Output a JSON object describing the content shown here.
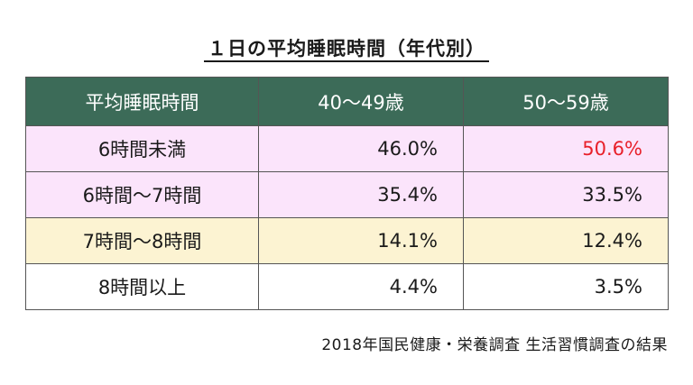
{
  "chart_data": {
    "type": "table",
    "title": "１日の平均睡眠時間（年代別）",
    "header": [
      "平均睡眠時間",
      "40～49歳",
      "50～59歳"
    ],
    "rows": [
      {
        "label": "6時間未満",
        "values": [
          "46.0%",
          "50.6%"
        ],
        "row_color": "#fbe4fb",
        "highlight_col": 1,
        "highlight_color": "#e8202a"
      },
      {
        "label": "6時間～7時間",
        "values": [
          "35.4%",
          "33.5%"
        ],
        "row_color": "#fbe4fb"
      },
      {
        "label": "7時間～8時間",
        "values": [
          "14.1%",
          "12.4%"
        ],
        "row_color": "#fcf3d2"
      },
      {
        "label": "8時間以上",
        "values": [
          "4.4%",
          "3.5%"
        ],
        "row_color": "#ffffff"
      }
    ],
    "header_color": "#3c6b58"
  },
  "source": "2018年国民健康・栄養調査 生活習慣調査の結果"
}
